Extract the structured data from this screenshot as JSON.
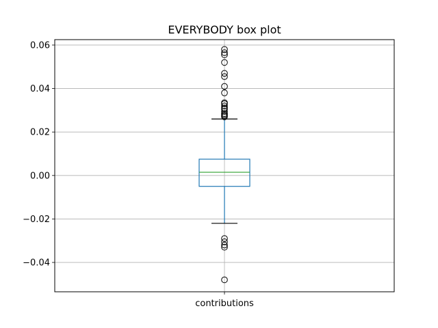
{
  "chart_data": {
    "type": "box",
    "title": "EVERYBODY box plot",
    "xlabel": "",
    "ylabel": "",
    "categories": [
      "contributions"
    ],
    "ylim": [
      -0.0535,
      0.0625
    ],
    "yticks": [
      -0.04,
      -0.02,
      0.0,
      0.02,
      0.04,
      0.06
    ],
    "ytick_labels": [
      "−0.04",
      "−0.02",
      "0.00",
      "0.02",
      "0.04",
      "0.06"
    ],
    "grid": true,
    "box": {
      "q1": -0.005,
      "median": 0.0015,
      "q3": 0.0075,
      "whisker_low": -0.022,
      "whisker_high": 0.026
    },
    "outliers": [
      0.058,
      0.0565,
      0.0555,
      0.052,
      0.047,
      0.0455,
      0.041,
      0.038,
      0.0335,
      0.033,
      0.032,
      0.031,
      0.0305,
      0.0295,
      0.0285,
      0.028,
      0.0275,
      0.027,
      -0.029,
      -0.0305,
      -0.032,
      -0.033,
      -0.048
    ],
    "colors": {
      "box": "#1f77b4",
      "median": "#2ca02c",
      "whisker": "#1f77b4",
      "cap": "#000000",
      "outlier": "#000000",
      "grid": "#b0b0b0"
    }
  }
}
